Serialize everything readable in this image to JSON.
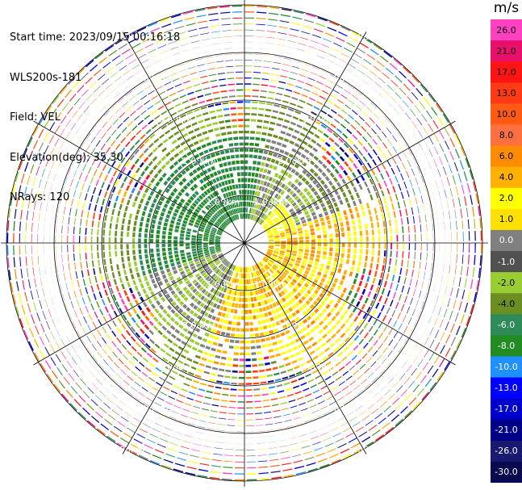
{
  "header": {
    "start_time": "Start time: 2023/09/15 00:16:18",
    "instrument": "WLS200s-181",
    "field": "Field: VEL",
    "elevation": "Elevation(deg): 35.30",
    "nrays": "NRays: 120"
  },
  "colorbar": {
    "unit": "m/s",
    "labels": [
      "26.0",
      "21.0",
      "17.0",
      "13.0",
      "10.0",
      "8.0",
      "6.0",
      "4.0",
      "2.0",
      "1.0",
      "0.0",
      "-1.0",
      "-2.0",
      "-4.0",
      "-6.0",
      "-8.0",
      "-10.0",
      "-13.0",
      "-17.0",
      "-21.0",
      "-26.0",
      "-30.0"
    ],
    "colors": [
      "#ff40c0",
      "#e8106a",
      "#ff1414",
      "#ff3a14",
      "#ff5a14",
      "#ff7040",
      "#ff8c00",
      "#ffb000",
      "#ffff00",
      "#ffe000",
      "#808080",
      "#505050",
      "#9acd32",
      "#6b8e23",
      "#2e8b57",
      "#228b22",
      "#1e90ff",
      "#0000ff",
      "#0000cd",
      "#000088",
      "#191970",
      "#0a0a50"
    ]
  },
  "plot": {
    "range_labels": [
      "1.00km",
      "2.00km",
      "3.00km",
      "4.00km",
      "5.00km"
    ],
    "max_range_km": 5.0,
    "range_gates": 40,
    "rays": 120
  }
}
